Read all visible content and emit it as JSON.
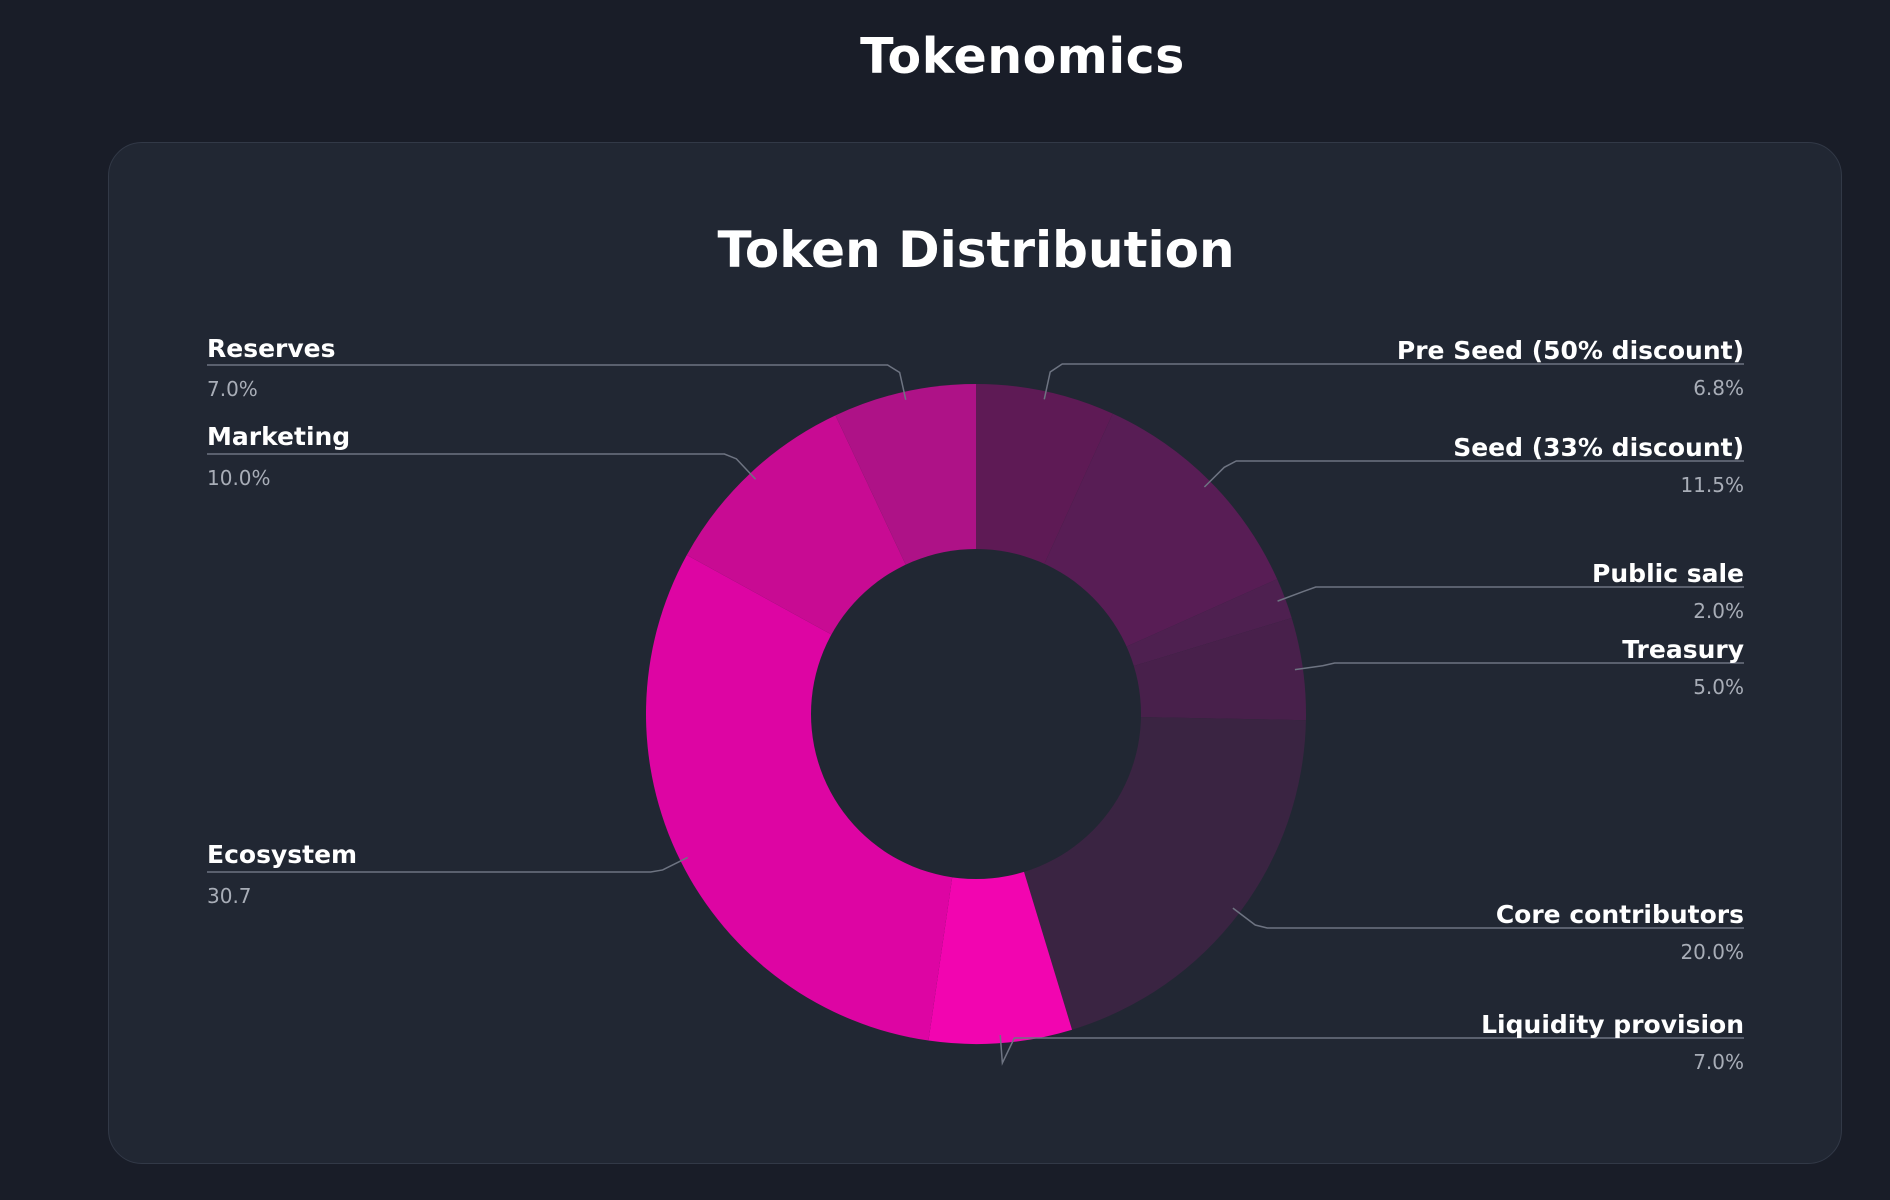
{
  "page": {
    "heading": "Tokenomics"
  },
  "colors": {
    "background": "#191d28",
    "card": "#212733",
    "card_border": "#323947",
    "leader_line": "#6e7482"
  },
  "chart_data": {
    "type": "pie",
    "variant": "donut",
    "title": "Token Distribution",
    "start_angle_deg": 0,
    "direction": "clockwise",
    "slices": [
      {
        "name": "Pre Seed (50% discount)",
        "value": 6.8,
        "label": "6.8%",
        "color": "#5e1a55",
        "side": "right"
      },
      {
        "name": "Seed (33% discount)",
        "value": 11.5,
        "label": "11.5%",
        "color": "#581d55",
        "side": "right"
      },
      {
        "name": "Public sale",
        "value": 2.0,
        "label": "2.0%",
        "color": "#4e2050",
        "side": "right"
      },
      {
        "name": "Treasury",
        "value": 5.0,
        "label": "5.0%",
        "color": "#48204b",
        "side": "right"
      },
      {
        "name": "Core contributors",
        "value": 20.0,
        "label": "20.0%",
        "color": "#3a2442",
        "side": "right"
      },
      {
        "name": "Liquidity provision",
        "value": 7.0,
        "label": "7.0%",
        "color": "#f205b0",
        "side": "right"
      },
      {
        "name": "Ecosystem",
        "value": 30.7,
        "label": "30.7",
        "color": "#dd05a3",
        "side": "left"
      },
      {
        "name": "Marketing",
        "value": 10.0,
        "label": "10.0%",
        "color": "#c80b93",
        "side": "left"
      },
      {
        "name": "Reserves",
        "value": 7.0,
        "label": "7.0%",
        "color": "#ae1287",
        "side": "left"
      }
    ]
  }
}
